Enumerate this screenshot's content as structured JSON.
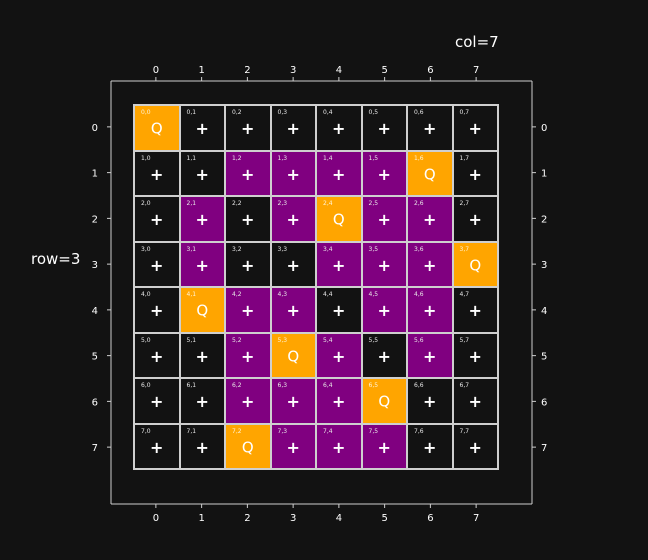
{
  "labels": {
    "col": "col=7",
    "row": "row=3"
  },
  "axis_ticks": [
    "0",
    "1",
    "2",
    "3",
    "4",
    "5",
    "6",
    "7"
  ],
  "board": {
    "size": 8,
    "queen_symbol": "Q",
    "empty_symbol": "+",
    "colors": {
      "empty": "#121212",
      "attacked": "#800080",
      "queen": "#FFA500",
      "grid": "#cfcfcf"
    },
    "rows": [
      [
        "Q",
        ".",
        ".",
        ".",
        ".",
        ".",
        ".",
        "."
      ],
      [
        ".",
        ".",
        "a",
        "a",
        "a",
        "a",
        "Q",
        "."
      ],
      [
        ".",
        "a",
        ".",
        "a",
        "Q",
        "a",
        "a",
        "."
      ],
      [
        ".",
        "a",
        ".",
        ".",
        "a",
        "a",
        "a",
        "Q"
      ],
      [
        ".",
        "Q",
        "a",
        "a",
        ".",
        "a",
        "a",
        "."
      ],
      [
        ".",
        ".",
        "a",
        "Q",
        "a",
        ".",
        "a",
        "."
      ],
      [
        ".",
        ".",
        "a",
        "a",
        "a",
        "Q",
        ".",
        "."
      ],
      [
        ".",
        ".",
        "Q",
        "a",
        "a",
        "a",
        ".",
        "."
      ]
    ]
  }
}
